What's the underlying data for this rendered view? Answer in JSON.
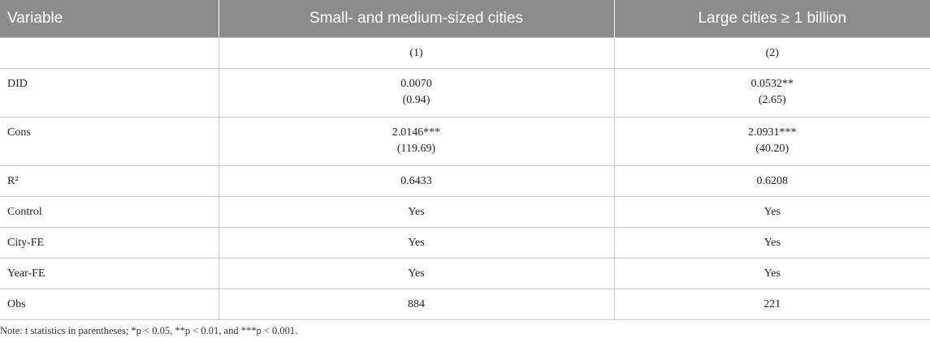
{
  "table": {
    "headers": [
      "Variable",
      "Small- and medium-sized cities",
      "Large cities ≥ 1 billion"
    ],
    "rows": [
      {
        "label": "",
        "col1": [
          "(1)"
        ],
        "col2": [
          "(2)"
        ]
      },
      {
        "label": "DID",
        "col1": [
          "0.0070",
          "(0.94)"
        ],
        "col2": [
          "0.0532**",
          "(2.65)"
        ]
      },
      {
        "label": "Cons",
        "col1": [
          "2.0146***",
          "(119.69)"
        ],
        "col2": [
          "2.0931***",
          "(40.20)"
        ]
      },
      {
        "label": "R²",
        "col1": [
          "0.6433"
        ],
        "col2": [
          "0.6208"
        ]
      },
      {
        "label": "Control",
        "col1": [
          "Yes"
        ],
        "col2": [
          "Yes"
        ]
      },
      {
        "label": "City-FE",
        "col1": [
          "Yes"
        ],
        "col2": [
          "Yes"
        ]
      },
      {
        "label": "Year-FE",
        "col1": [
          "Yes"
        ],
        "col2": [
          "Yes"
        ]
      },
      {
        "label": "Obs",
        "col1": [
          "884"
        ],
        "col2": [
          "221"
        ]
      }
    ]
  },
  "note": "Note: t statistics in parentheses; *p < 0.05, **p < 0.01, and ***p < 0.001.",
  "colors": {
    "header_bg": "#8c8c8c",
    "header_text": "#ffffff",
    "grid": "#c9c9c9"
  }
}
